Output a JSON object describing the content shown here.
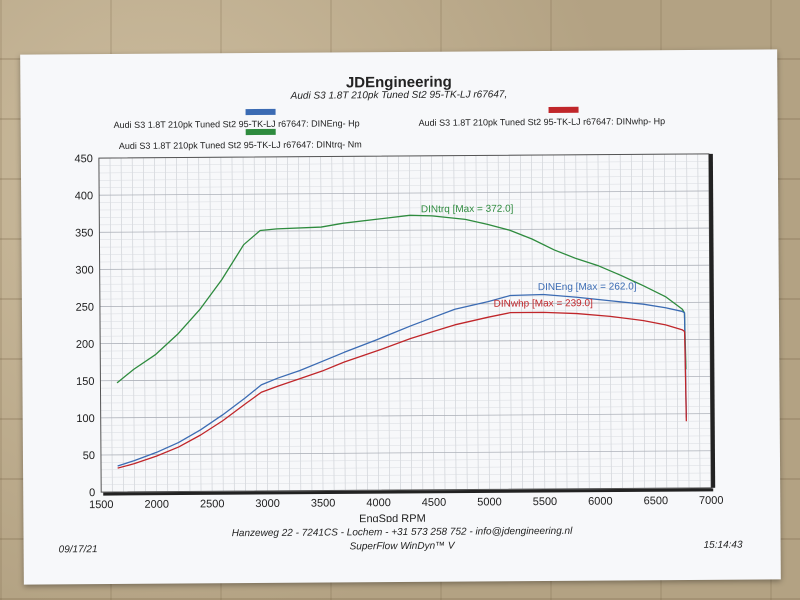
{
  "header": {
    "title": "JDEngineering",
    "subtitle": "Audi S3 1.8T 210pk Tuned St2 95-TK-LJ r67647,"
  },
  "legend": [
    {
      "label": "Audi S3 1.8T 210pk Tuned St2 95-TK-LJ r67647: DINEng- Hp",
      "color": "#3b6bb3"
    },
    {
      "label": "Audi S3 1.8T 210pk Tuned St2 95-TK-LJ r67647: DINwhp-  Hp",
      "color": "#c0262a"
    },
    {
      "label": "Audi S3 1.8T 210pk Tuned St2 95-TK-LJ r67647: DINtrq- Nm",
      "color": "#2e8b3e"
    }
  ],
  "footer": {
    "address": "Hanzeweg 22 - 7241CS - Lochem - +31 573 258 752 - info@jdengineering.nl",
    "software": "SuperFlow WinDyn™ V",
    "date": "09/17/21",
    "time": "15:14:43"
  },
  "chart_data": {
    "type": "line",
    "title": "JDEngineering",
    "subtitle": "Audi S3 1.8T 210pk Tuned St2 95-TK-LJ r67647,",
    "xlabel": "EngSpd  RPM",
    "ylabel": "",
    "xlim": [
      1500,
      7000
    ],
    "ylim": [
      0,
      450
    ],
    "x_ticks": [
      "1500",
      "2000",
      "2500",
      "3000",
      "3500",
      "4000",
      "4500",
      "5000",
      "5500",
      "6000",
      "6500",
      "7000"
    ],
    "y_ticks": [
      "0",
      "50",
      "100",
      "150",
      "200",
      "250",
      "300",
      "350",
      "400",
      "450"
    ],
    "grid": true,
    "legend_position": "top",
    "series": [
      {
        "name": "Audi S3 1.8T 210pk Tuned St2 95-TK-LJ r67647: DINtrq- Nm",
        "color": "#2e8b3e",
        "annotation": "DINtrq [Max = 372.0]",
        "annotation_at": [
          4400,
          374
        ],
        "points": [
          [
            1650,
            147
          ],
          [
            1800,
            165
          ],
          [
            2000,
            185
          ],
          [
            2200,
            212
          ],
          [
            2400,
            245
          ],
          [
            2600,
            285
          ],
          [
            2800,
            332
          ],
          [
            2950,
            351
          ],
          [
            3100,
            353
          ],
          [
            3500,
            355
          ],
          [
            3700,
            360
          ],
          [
            4000,
            365
          ],
          [
            4300,
            370
          ],
          [
            4500,
            369
          ],
          [
            4800,
            364
          ],
          [
            5000,
            357
          ],
          [
            5200,
            349
          ],
          [
            5400,
            337
          ],
          [
            5600,
            322
          ],
          [
            5800,
            310
          ],
          [
            6000,
            300
          ],
          [
            6200,
            287
          ],
          [
            6400,
            273
          ],
          [
            6600,
            258
          ],
          [
            6750,
            241
          ],
          [
            6770,
            236
          ],
          [
            6775,
            200
          ],
          [
            6780,
            160
          ]
        ]
      },
      {
        "name": "Audi S3 1.8T 210pk Tuned St2 95-TK-LJ r67647: DINEng- Hp",
        "color": "#3b6bb3",
        "annotation": "DINEng [Max = 262.0]",
        "annotation_at": [
          5450,
          268
        ],
        "points": [
          [
            1650,
            35
          ],
          [
            1800,
            42
          ],
          [
            2000,
            53
          ],
          [
            2200,
            66
          ],
          [
            2400,
            83
          ],
          [
            2600,
            103
          ],
          [
            2800,
            125
          ],
          [
            2950,
            143
          ],
          [
            3100,
            152
          ],
          [
            3300,
            162
          ],
          [
            3500,
            174
          ],
          [
            3700,
            186
          ],
          [
            4000,
            203
          ],
          [
            4300,
            221
          ],
          [
            4500,
            232
          ],
          [
            4700,
            243
          ],
          [
            5000,
            253
          ],
          [
            5200,
            261
          ],
          [
            5500,
            262
          ],
          [
            5800,
            258
          ],
          [
            6100,
            253
          ],
          [
            6400,
            248
          ],
          [
            6600,
            243
          ],
          [
            6750,
            238
          ],
          [
            6770,
            236
          ],
          [
            6775,
            180
          ],
          [
            6780,
            95
          ]
        ]
      },
      {
        "name": "Audi S3 1.8T 210pk Tuned St2 95-TK-LJ r67647: DINwhp-  Hp",
        "color": "#c0262a",
        "annotation": "DINwhp [Max = 239.0]",
        "annotation_at": [
          5050,
          246
        ],
        "points": [
          [
            1650,
            32
          ],
          [
            1800,
            38
          ],
          [
            2000,
            48
          ],
          [
            2200,
            60
          ],
          [
            2400,
            76
          ],
          [
            2600,
            95
          ],
          [
            2800,
            117
          ],
          [
            2950,
            133
          ],
          [
            3100,
            141
          ],
          [
            3300,
            151
          ],
          [
            3500,
            161
          ],
          [
            3700,
            173
          ],
          [
            4000,
            188
          ],
          [
            4300,
            204
          ],
          [
            4500,
            213
          ],
          [
            4700,
            222
          ],
          [
            5000,
            232
          ],
          [
            5200,
            238
          ],
          [
            5500,
            238
          ],
          [
            5800,
            236
          ],
          [
            6100,
            232
          ],
          [
            6400,
            226
          ],
          [
            6600,
            220
          ],
          [
            6750,
            213
          ],
          [
            6770,
            211
          ],
          [
            6775,
            160
          ],
          [
            6780,
            90
          ]
        ]
      }
    ]
  }
}
